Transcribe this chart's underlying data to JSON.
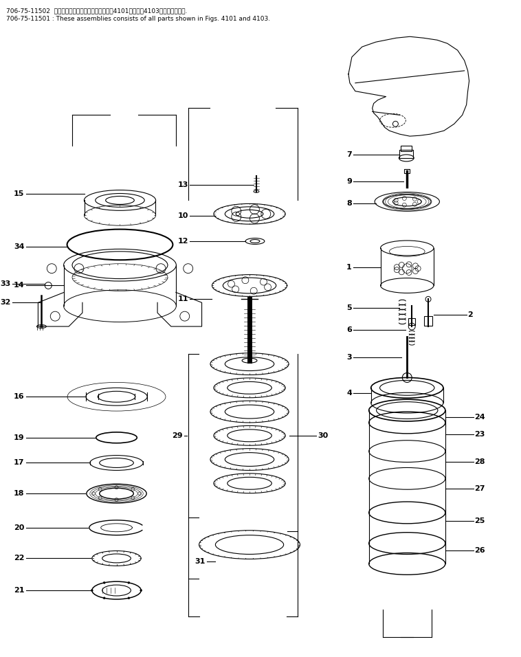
{
  "title_line1": "706-75-11502  これらのアセンブリの構成部品は笥4101図及び笥4103図まで含みます.",
  "title_line2": "706-75-11501 : These assemblies consists of all parts shown in Figs. 4101 and 4103.",
  "bg_color": "#ffffff",
  "lc": "#000000",
  "fs": 7.5,
  "lw": 0.8
}
